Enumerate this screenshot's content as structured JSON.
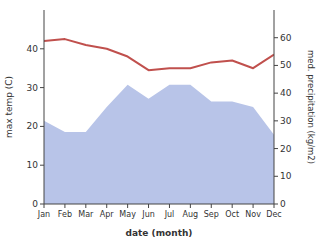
{
  "chart_data": {
    "type": "line",
    "xlabel": "date (month)",
    "ylabel": "max temp (C)",
    "y2label": "med. precipitation (kg/m2)",
    "categories": [
      "Jan",
      "Feb",
      "Mar",
      "Apr",
      "May",
      "Jun",
      "Jul",
      "Aug",
      "Sep",
      "Oct",
      "Nov",
      "Dec"
    ],
    "series": [
      {
        "type": "line",
        "color": "#c0504d",
        "values": [
          42,
          42.5,
          41,
          40,
          38,
          34.5,
          35,
          35,
          36.5,
          37,
          35,
          38.5
        ]
      },
      {
        "type": "area",
        "color": "#b8c4e8",
        "axis": "y2",
        "values": [
          30,
          26,
          26,
          35,
          43,
          38,
          43,
          43,
          37,
          37,
          35,
          25
        ]
      }
    ],
    "ylim": [
      0,
      50
    ],
    "yticks": [
      0,
      10,
      20,
      30,
      40
    ],
    "y2lim": [
      0,
      70
    ],
    "y2ticks": [
      0,
      10,
      20,
      30,
      40,
      50,
      60
    ],
    "grid": false
  }
}
